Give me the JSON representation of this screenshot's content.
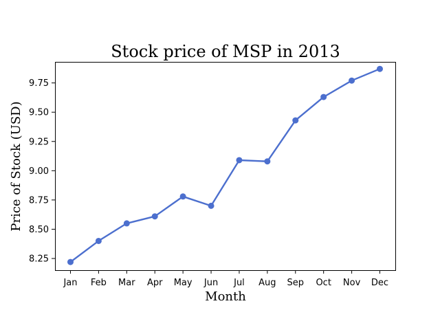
{
  "chart_data": {
    "type": "line",
    "title": "Stock price of MSP in 2013",
    "xlabel": "Month",
    "ylabel": "Price of Stock (USD)",
    "categories": [
      "Jan",
      "Feb",
      "Mar",
      "Apr",
      "May",
      "Jun",
      "Jul",
      "Aug",
      "Sep",
      "Oct",
      "Nov",
      "Dec"
    ],
    "series": [
      {
        "values": [
          8.22,
          8.4,
          8.55,
          8.61,
          8.78,
          8.7,
          9.09,
          9.08,
          9.43,
          9.63,
          9.77,
          9.87
        ],
        "color": "#4c6fce",
        "marker": "circle"
      }
    ],
    "ylim": [
      8.15,
      9.93
    ],
    "yticks": [
      "8.25",
      "8.50",
      "8.75",
      "9.00",
      "9.25",
      "9.50",
      "9.75"
    ],
    "grid": false,
    "legend": "none"
  }
}
